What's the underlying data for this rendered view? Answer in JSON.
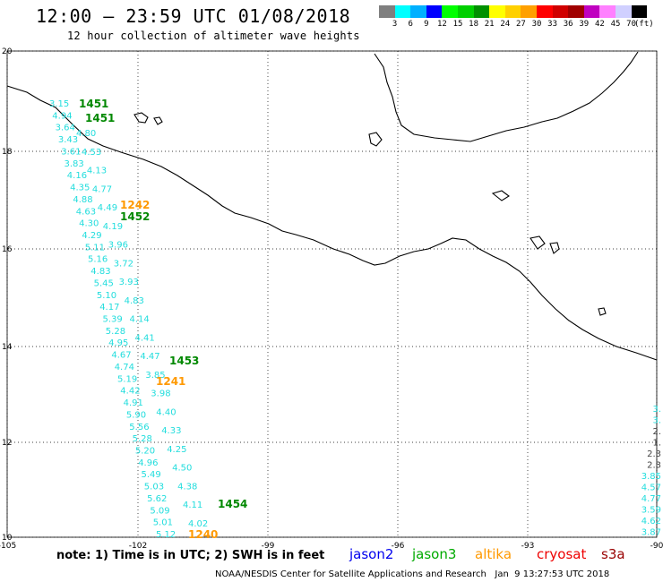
{
  "header": {
    "title": "12:00 – 23:59 UTC 01/08/2018",
    "subtitle": "12 hour collection of altimeter wave heights"
  },
  "color_scale": {
    "unit": "(ft)",
    "bins": [
      {
        "color": "#7f7f7f",
        "label": "3"
      },
      {
        "color": "#00ffff",
        "label": "6"
      },
      {
        "color": "#00b0ff",
        "label": "9"
      },
      {
        "color": "#0000ff",
        "label": "12"
      },
      {
        "color": "#00ff00",
        "label": "15"
      },
      {
        "color": "#00d000",
        "label": "18"
      },
      {
        "color": "#009000",
        "label": "21"
      },
      {
        "color": "#ffff00",
        "label": "24"
      },
      {
        "color": "#ffd000",
        "label": "27"
      },
      {
        "color": "#ffa000",
        "label": "30"
      },
      {
        "color": "#ff0000",
        "label": "33"
      },
      {
        "color": "#d00000",
        "label": "36"
      },
      {
        "color": "#a00000",
        "label": "39"
      },
      {
        "color": "#c000c0",
        "label": "42"
      },
      {
        "color": "#ff80ff",
        "label": "45"
      },
      {
        "color": "#d0d0ff",
        "label": "70"
      },
      {
        "color": "#000000",
        "label": ""
      }
    ]
  },
  "map": {
    "lon_ticks": [
      "-105",
      "-102",
      "-99",
      "-96",
      "-93",
      "-90"
    ],
    "lat_ticks": [
      "20",
      "18",
      "16",
      "14",
      "12",
      "10"
    ]
  },
  "tracks": {
    "swh_color": "#22dddd",
    "track_a_values": [
      "3.15",
      "4.94",
      "3.64",
      "3.43",
      "3.61",
      "3.83",
      "4.16",
      "4.35",
      "4.88",
      "4.63",
      "4.30",
      "4.29",
      "5.11",
      "5.16",
      "4.83",
      "5.45",
      "5.10",
      "4.17",
      "5.39",
      "5.28",
      "4.95",
      "4.67",
      "4.74",
      "5.19",
      "4.42",
      "4.91",
      "5.90",
      "5.56",
      "5.28",
      "5.20",
      "4.96",
      "5.49",
      "5.03",
      "5.62",
      "5.09",
      "5.01",
      "5.12"
    ],
    "track_b_values": [
      "4.80",
      "4.53",
      "4.13",
      "4.77",
      "4.49",
      "4.19",
      "3.96",
      "3.72",
      "3.93",
      "4.83",
      "4.14",
      "4.41",
      "4.47",
      "3.85",
      "3.98",
      "4.40",
      "4.33",
      "4.25",
      "4.50",
      "4.38",
      "4.11",
      "4.02"
    ],
    "edge_values": [
      "3.",
      "3.",
      "2.",
      "1.",
      "2.3",
      "2.3",
      "3.85",
      "4.57",
      "4.77",
      "3.59",
      "4.62",
      "3.87"
    ],
    "time_labels": [
      {
        "text": "1451",
        "color": "#008800"
      },
      {
        "text": "1451",
        "color": "#008800"
      },
      {
        "text": "1242",
        "color": "#ff9900"
      },
      {
        "text": "1452",
        "color": "#008800"
      },
      {
        "text": "1453",
        "color": "#008800"
      },
      {
        "text": "1241",
        "color": "#ff9900"
      },
      {
        "text": "1454",
        "color": "#008800"
      },
      {
        "text": "1240",
        "color": "#ff9900"
      }
    ]
  },
  "legend": {
    "note": "note: 1) Time is in UTC; 2) SWH is in feet",
    "satellites": [
      {
        "name": "jason2",
        "color": "#0000ee"
      },
      {
        "name": "jason3",
        "color": "#00aa00"
      },
      {
        "name": "altika",
        "color": "#ff9900"
      },
      {
        "name": "cryosat",
        "color": "#ee0000"
      },
      {
        "name": "s3a",
        "color": "#990000"
      }
    ]
  },
  "footer": "NOAA/NESDIS Center for Satellite Applications and Research   Jan  9 13:27:53 UTC 2018"
}
